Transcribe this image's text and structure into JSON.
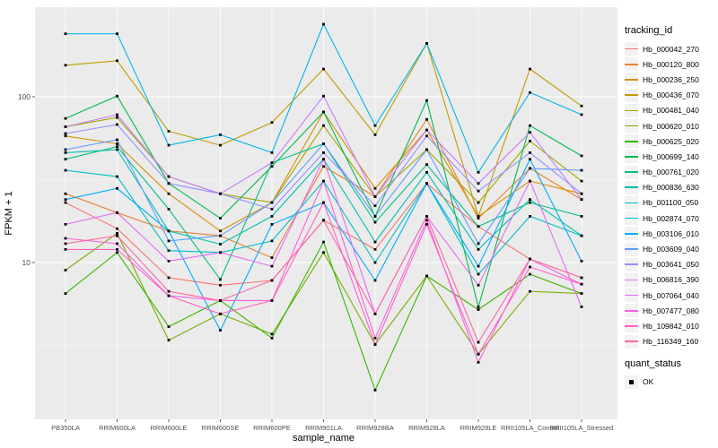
{
  "figure": {
    "background": "#FFFFFF",
    "panel_background": "#EBEBEB",
    "grid_color": "#FFFFFF",
    "tick_color": "#333333",
    "tick_label_color": "#4D4D4D",
    "point_color": "#000000"
  },
  "axes": {
    "x_title": "sample_name",
    "y_title": "FPKM + 1",
    "y_ticks": [
      {
        "label": "100",
        "value": 100
      },
      {
        "label": "10",
        "value": 10
      }
    ],
    "y_minor_breaks": [
      316.23,
      31.62,
      3.162
    ]
  },
  "legend": {
    "tracking_title": "tracking_id",
    "quant_title": "quant_status",
    "quant_items": [
      {
        "label": "OK",
        "marker": "black-square"
      }
    ]
  },
  "chart_data": {
    "type": "line",
    "title": "",
    "xlabel": "sample_name",
    "ylabel": "FPKM + 1",
    "y_scale": "log10",
    "ylim": [
      1.2,
      320
    ],
    "grid": "on",
    "legend_position": "right",
    "point_marker": "black-square",
    "categories": [
      "PB350LA",
      "RRIM600LA",
      "RRIM600LE",
      "RRIM600SE",
      "RRIM600PE",
      "RRIM901LA",
      "RRIM928BA",
      "RRIM928LA",
      "RRIM928LE",
      "RRII105LA_Control",
      "RRII105LA_Stressed"
    ],
    "series": [
      {
        "name": "Hb_000042_270",
        "color": "#F8766D",
        "values": [
          23,
          16,
          8.1,
          7.3,
          7.8,
          18,
          12,
          30,
          16.5,
          10.5,
          8.1
        ]
      },
      {
        "name": "Hb_000120_800",
        "color": "#EA8331",
        "values": [
          26,
          20,
          15.5,
          14.5,
          10.7,
          38,
          25,
          73,
          18.5,
          37,
          24
        ]
      },
      {
        "name": "Hb_000236_250",
        "color": "#D89000",
        "values": [
          58,
          52,
          26,
          15.5,
          23,
          81,
          28,
          63,
          19,
          31,
          26
        ]
      },
      {
        "name": "Hb_000436_070",
        "color": "#C09B00",
        "values": [
          155,
          165,
          62,
          51,
          70,
          147,
          59,
          210,
          19,
          147,
          88
        ]
      },
      {
        "name": "Hb_000481_040",
        "color": "#A3A500",
        "values": [
          66,
          75,
          33,
          26,
          23,
          67,
          25,
          48,
          23,
          54,
          31
        ]
      },
      {
        "name": "Hb_000620_010",
        "color": "#7CAE00",
        "values": [
          9,
          15,
          3.4,
          4.9,
          3.7,
          11.5,
          3.2,
          8.3,
          2.8,
          6.7,
          6.5
        ]
      },
      {
        "name": "Hb_000625_020",
        "color": "#39B600",
        "values": [
          6.5,
          11.5,
          4.1,
          5.9,
          3.5,
          13.3,
          1.7,
          8.3,
          5.2,
          8.5,
          6.5
        ]
      },
      {
        "name": "Hb_000699_140",
        "color": "#00BB4E",
        "values": [
          74,
          101,
          30,
          18.5,
          38,
          81,
          19,
          95,
          5.4,
          67,
          44
        ]
      },
      {
        "name": "Hb_000761_020",
        "color": "#00C087",
        "values": [
          42,
          50,
          21,
          7.9,
          40,
          52,
          17.5,
          39,
          16.5,
          23,
          19
        ]
      },
      {
        "name": "Hb_000836_630",
        "color": "#00C0AF",
        "values": [
          46,
          48,
          15.5,
          12.9,
          19,
          42,
          13.3,
          35,
          12,
          24,
          14.5
        ]
      },
      {
        "name": "Hb_001100_050",
        "color": "#00BFC4",
        "values": [
          36,
          33,
          11.8,
          11.5,
          13.5,
          31,
          10,
          30,
          8.5,
          19,
          14.5
        ]
      },
      {
        "name": "Hb_002874_070",
        "color": "#00B8E7",
        "values": [
          240,
          240,
          51,
          59,
          46,
          274,
          67,
          210,
          35,
          106,
          78
        ]
      },
      {
        "name": "Hb_003106_010",
        "color": "#00ACFC",
        "values": [
          24,
          28,
          15.5,
          3.9,
          17,
          23,
          7.8,
          30,
          9.5,
          42,
          10.2
        ]
      },
      {
        "name": "Hb_003609_040",
        "color": "#619CFF",
        "values": [
          48,
          55,
          13.5,
          14.5,
          23,
          52,
          19,
          48,
          13,
          37,
          36
        ]
      },
      {
        "name": "Hb_003641_050",
        "color": "#9590FF",
        "values": [
          60,
          68,
          30,
          26,
          21,
          46,
          22,
          58,
          27,
          46,
          26
        ]
      },
      {
        "name": "Hb_006816_390",
        "color": "#C77CFF",
        "values": [
          66,
          78,
          33,
          26,
          40,
          101,
          25,
          63,
          30,
          61,
          24
        ]
      },
      {
        "name": "Hb_007064_040",
        "color": "#E76BF3",
        "values": [
          17,
          20,
          10.2,
          11.5,
          9.5,
          42,
          4.9,
          19,
          7.3,
          31,
          5.4
        ]
      },
      {
        "name": "Hb_007477_080",
        "color": "#FA62DB",
        "values": [
          14,
          13,
          6.3,
          5.9,
          5.9,
          31,
          3.5,
          18,
          2.5,
          10.5,
          7.4
        ]
      },
      {
        "name": "Hb_109842_010",
        "color": "#FF61C9",
        "values": [
          12,
          12,
          6.3,
          4.9,
          5.9,
          23,
          3.2,
          17,
          2.8,
          9.4,
          7.4
        ]
      },
      {
        "name": "Hb_116349_160",
        "color": "#FF67A4",
        "values": [
          13,
          14.5,
          6.7,
          5.9,
          7.8,
          18,
          4.9,
          19,
          3.3,
          10.5,
          8.1
        ]
      }
    ]
  }
}
